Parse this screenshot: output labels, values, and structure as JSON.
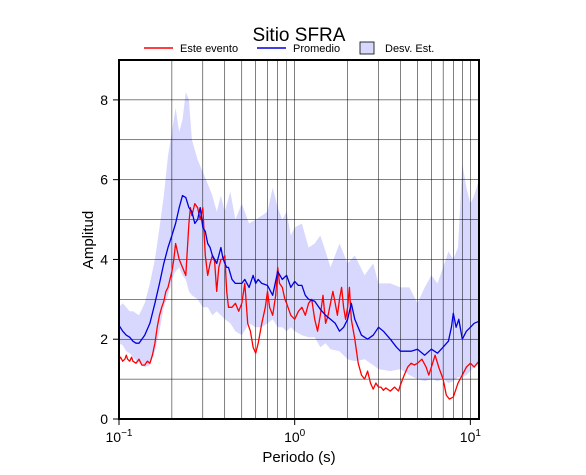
{
  "chart_data": {
    "type": "line",
    "title": "Sitio SFRA",
    "xlabel": "Periodo (s)",
    "ylabel": "Amplitud",
    "xscale": "log",
    "xlim": [
      0.1,
      11.2
    ],
    "ylim": [
      0,
      9
    ],
    "grid": true,
    "legend_position": "top",
    "x_ticks": [
      {
        "value": 0.1,
        "base": "10",
        "exp": "−1"
      },
      {
        "value": 1,
        "base": "10",
        "exp": "0"
      },
      {
        "value": 10,
        "base": "10",
        "exp": "1"
      }
    ],
    "y_ticks": [
      0,
      2,
      4,
      6,
      8
    ],
    "legend": [
      {
        "label": "Este evento",
        "color": "#ff0000",
        "kind": "line"
      },
      {
        "label": "Promedio",
        "color": "#0000dd",
        "kind": "line"
      },
      {
        "label": "Desv. Est.",
        "color": "#d8d8ff",
        "kind": "box"
      }
    ],
    "band": {
      "name": "Desv. Est.",
      "color": "#d8d8ff",
      "x": [
        0.1,
        0.105,
        0.11,
        0.115,
        0.12,
        0.13,
        0.14,
        0.15,
        0.16,
        0.17,
        0.18,
        0.19,
        0.2,
        0.21,
        0.22,
        0.23,
        0.24,
        0.25,
        0.26,
        0.28,
        0.3,
        0.32,
        0.34,
        0.36,
        0.38,
        0.4,
        0.43,
        0.46,
        0.5,
        0.55,
        0.6,
        0.65,
        0.7,
        0.75,
        0.8,
        0.85,
        0.9,
        0.95,
        1.0,
        1.1,
        1.2,
        1.3,
        1.4,
        1.5,
        1.6,
        1.8,
        2.0,
        2.2,
        2.5,
        2.8,
        3.0,
        3.5,
        4.0,
        4.5,
        5.0,
        5.5,
        6.0,
        6.5,
        7.0,
        7.5,
        8.0,
        8.5,
        9.0,
        9.5,
        10.0,
        10.5,
        11.2
      ],
      "upper": [
        2.8,
        2.9,
        2.8,
        2.7,
        2.7,
        2.6,
        2.9,
        3.4,
        4.0,
        4.8,
        5.6,
        6.6,
        7.2,
        7.8,
        7.2,
        7.5,
        8.2,
        8.0,
        7.0,
        6.5,
        6.2,
        5.9,
        5.6,
        5.2,
        5.6,
        5.2,
        5.7,
        5.0,
        5.4,
        4.9,
        5.0,
        5.1,
        5.2,
        5.8,
        5.3,
        5.0,
        5.2,
        4.6,
        4.8,
        4.9,
        4.3,
        4.4,
        4.6,
        4.2,
        3.8,
        4.4,
        3.9,
        4.1,
        3.6,
        3.9,
        3.4,
        3.4,
        3.3,
        3.3,
        2.9,
        3.3,
        3.6,
        3.4,
        3.8,
        4.2,
        4.0,
        4.3,
        6.4,
        5.8,
        5.4,
        5.6,
        6.0
      ],
      "lower": [
        1.9,
        1.85,
        1.7,
        1.65,
        1.55,
        1.4,
        1.3,
        1.35,
        1.7,
        2.2,
        2.8,
        3.1,
        3.5,
        3.7,
        3.8,
        3.6,
        3.5,
        3.2,
        3.1,
        3.0,
        2.8,
        2.8,
        2.6,
        2.7,
        2.6,
        2.5,
        2.4,
        2.2,
        2.1,
        2.4,
        2.3,
        2.3,
        2.4,
        2.5,
        2.3,
        2.3,
        2.2,
        2.3,
        2.2,
        2.1,
        2.05,
        2.05,
        1.8,
        1.9,
        1.75,
        1.7,
        1.5,
        1.45,
        1.5,
        1.35,
        1.25,
        1.2,
        1.25,
        1.1,
        1.0,
        0.95,
        1.0,
        0.95,
        1.0,
        0.9,
        0.95,
        1.05,
        1.05,
        1.1,
        1.2,
        1.3,
        1.4
      ]
    },
    "series": [
      {
        "name": "Este evento",
        "color": "#ff0000",
        "x": [
          0.1,
          0.102,
          0.105,
          0.108,
          0.11,
          0.112,
          0.115,
          0.118,
          0.12,
          0.125,
          0.13,
          0.135,
          0.14,
          0.145,
          0.15,
          0.155,
          0.16,
          0.165,
          0.17,
          0.175,
          0.18,
          0.185,
          0.19,
          0.2,
          0.205,
          0.21,
          0.22,
          0.23,
          0.24,
          0.25,
          0.255,
          0.26,
          0.27,
          0.28,
          0.29,
          0.3,
          0.31,
          0.32,
          0.33,
          0.34,
          0.35,
          0.36,
          0.37,
          0.38,
          0.39,
          0.4,
          0.41,
          0.42,
          0.44,
          0.46,
          0.48,
          0.5,
          0.52,
          0.54,
          0.56,
          0.58,
          0.6,
          0.62,
          0.65,
          0.68,
          0.7,
          0.72,
          0.75,
          0.78,
          0.8,
          0.82,
          0.85,
          0.88,
          0.9,
          0.95,
          1.0,
          1.05,
          1.1,
          1.15,
          1.2,
          1.25,
          1.3,
          1.35,
          1.4,
          1.45,
          1.5,
          1.55,
          1.6,
          1.65,
          1.7,
          1.75,
          1.8,
          1.85,
          1.9,
          1.95,
          2.0,
          2.05,
          2.1,
          2.2,
          2.3,
          2.4,
          2.5,
          2.6,
          2.7,
          2.8,
          2.9,
          3.0,
          3.1,
          3.2,
          3.3,
          3.5,
          3.7,
          3.9,
          4.0,
          4.2,
          4.4,
          4.6,
          4.8,
          5.0,
          5.3,
          5.6,
          5.8,
          6.0,
          6.3,
          6.6,
          7.0,
          7.3,
          7.6,
          8.0,
          8.5,
          9.0,
          9.5,
          10.0,
          10.5,
          11.2
        ],
        "values": [
          1.5,
          1.55,
          1.45,
          1.5,
          1.6,
          1.5,
          1.45,
          1.55,
          1.45,
          1.4,
          1.5,
          1.35,
          1.35,
          1.45,
          1.4,
          1.6,
          1.9,
          2.3,
          2.6,
          2.8,
          2.95,
          3.2,
          3.3,
          3.7,
          4.0,
          4.4,
          4.0,
          3.8,
          3.6,
          4.9,
          5.3,
          5.1,
          5.4,
          5.3,
          5.0,
          5.3,
          4.1,
          3.6,
          3.9,
          4.1,
          3.95,
          3.2,
          3.8,
          4.0,
          4.0,
          4.1,
          3.2,
          2.8,
          2.8,
          2.9,
          2.7,
          2.9,
          3.4,
          2.4,
          2.2,
          1.8,
          1.65,
          1.9,
          2.4,
          2.8,
          3.2,
          2.8,
          2.6,
          3.1,
          3.8,
          3.4,
          3.3,
          3.0,
          2.9,
          2.6,
          2.5,
          2.7,
          2.8,
          2.6,
          2.9,
          3.0,
          2.5,
          2.2,
          2.6,
          3.1,
          2.4,
          2.6,
          2.9,
          3.2,
          2.9,
          2.6,
          3.0,
          3.3,
          2.8,
          2.5,
          2.8,
          3.3,
          2.5,
          2.0,
          1.4,
          1.1,
          1.0,
          1.2,
          0.9,
          0.75,
          0.9,
          0.8,
          0.8,
          0.72,
          0.78,
          0.7,
          0.8,
          0.7,
          0.85,
          1.1,
          1.3,
          1.4,
          1.35,
          1.4,
          1.5,
          1.3,
          1.1,
          1.3,
          1.6,
          1.3,
          1.0,
          0.6,
          0.5,
          0.55,
          0.9,
          1.1,
          1.3,
          1.4,
          1.3,
          1.45
        ]
      },
      {
        "name": "Promedio",
        "color": "#0000dd",
        "x": [
          0.1,
          0.105,
          0.11,
          0.115,
          0.12,
          0.125,
          0.13,
          0.14,
          0.15,
          0.16,
          0.17,
          0.18,
          0.19,
          0.2,
          0.21,
          0.22,
          0.23,
          0.24,
          0.25,
          0.26,
          0.27,
          0.28,
          0.29,
          0.3,
          0.31,
          0.32,
          0.33,
          0.34,
          0.35,
          0.36,
          0.37,
          0.38,
          0.39,
          0.4,
          0.41,
          0.42,
          0.44,
          0.46,
          0.48,
          0.5,
          0.52,
          0.55,
          0.58,
          0.6,
          0.62,
          0.65,
          0.7,
          0.75,
          0.8,
          0.85,
          0.9,
          0.95,
          1.0,
          1.05,
          1.1,
          1.15,
          1.2,
          1.3,
          1.4,
          1.5,
          1.6,
          1.7,
          1.8,
          1.9,
          2.0,
          2.1,
          2.2,
          2.4,
          2.6,
          2.8,
          3.0,
          3.2,
          3.5,
          3.8,
          4.0,
          4.3,
          4.6,
          5.0,
          5.5,
          6.0,
          6.5,
          7.0,
          7.5,
          7.8,
          8.0,
          8.3,
          8.6,
          9.0,
          9.5,
          10.0,
          10.5,
          11.2
        ],
        "values": [
          2.35,
          2.2,
          2.1,
          2.05,
          1.95,
          1.9,
          1.9,
          2.1,
          2.4,
          2.9,
          3.4,
          3.9,
          4.3,
          4.6,
          4.9,
          5.3,
          5.6,
          5.55,
          5.3,
          5.2,
          4.9,
          5.0,
          5.3,
          4.8,
          4.7,
          4.4,
          4.3,
          4.1,
          4.0,
          3.9,
          4.1,
          4.3,
          4.05,
          3.9,
          3.8,
          3.8,
          3.5,
          3.4,
          3.4,
          3.4,
          3.5,
          3.3,
          3.6,
          3.4,
          3.5,
          3.4,
          3.35,
          3.1,
          3.7,
          3.5,
          3.6,
          3.3,
          3.45,
          3.35,
          3.35,
          3.1,
          3.0,
          2.95,
          2.75,
          2.6,
          2.5,
          2.4,
          2.2,
          2.3,
          2.5,
          2.9,
          2.5,
          2.1,
          2.0,
          2.1,
          2.3,
          2.2,
          2.0,
          1.8,
          1.7,
          1.7,
          1.7,
          1.75,
          1.6,
          1.75,
          1.65,
          1.8,
          1.95,
          2.3,
          2.65,
          2.3,
          2.5,
          2.0,
          2.2,
          2.3,
          2.4,
          2.45
        ]
      }
    ]
  }
}
